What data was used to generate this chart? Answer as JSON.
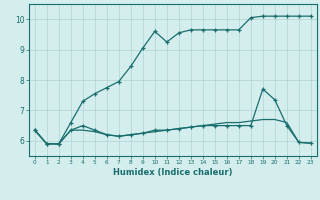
{
  "xlabel": "Humidex (Indice chaleur)",
  "bg_color": "#d4eeee",
  "line_color": "#1a6e6e",
  "grid_color": "#aed4d4",
  "xlim": [
    -0.5,
    23.5
  ],
  "ylim": [
    5.5,
    10.5
  ],
  "yticks": [
    6,
    7,
    8,
    9,
    10
  ],
  "xticks": [
    0,
    1,
    2,
    3,
    4,
    5,
    6,
    7,
    8,
    9,
    10,
    11,
    12,
    13,
    14,
    15,
    16,
    17,
    18,
    19,
    20,
    21,
    22,
    23
  ],
  "series1_x": [
    0,
    1,
    2,
    3,
    4,
    5,
    6,
    7,
    8,
    9,
    10,
    11,
    12,
    13,
    14,
    15,
    16,
    17,
    18,
    19,
    20,
    21,
    22,
    23
  ],
  "series1_y": [
    6.35,
    5.9,
    5.9,
    6.6,
    7.3,
    7.55,
    7.75,
    7.95,
    8.45,
    9.05,
    9.6,
    9.25,
    9.55,
    9.65,
    9.65,
    9.65,
    9.65,
    9.65,
    10.05,
    10.1,
    10.1,
    10.1,
    10.1,
    10.1
  ],
  "series2_x": [
    0,
    1,
    2,
    3,
    4,
    5,
    6,
    7,
    8,
    9,
    10,
    11,
    12,
    13,
    14,
    15,
    16,
    17,
    18,
    19,
    20,
    21,
    22,
    23
  ],
  "series2_y": [
    6.35,
    5.9,
    5.9,
    6.35,
    6.5,
    6.35,
    6.2,
    6.15,
    6.2,
    6.25,
    6.35,
    6.35,
    6.4,
    6.45,
    6.5,
    6.5,
    6.5,
    6.5,
    6.5,
    7.7,
    7.35,
    6.5,
    5.95,
    5.92
  ],
  "series3_x": [
    0,
    1,
    2,
    3,
    4,
    5,
    6,
    7,
    8,
    9,
    10,
    11,
    12,
    13,
    14,
    15,
    16,
    17,
    18,
    19,
    20,
    21,
    22,
    23
  ],
  "series3_y": [
    6.35,
    5.9,
    5.9,
    6.35,
    6.35,
    6.3,
    6.2,
    6.15,
    6.2,
    6.25,
    6.3,
    6.35,
    6.4,
    6.45,
    6.5,
    6.55,
    6.6,
    6.6,
    6.65,
    6.7,
    6.7,
    6.6,
    5.95,
    5.92
  ]
}
